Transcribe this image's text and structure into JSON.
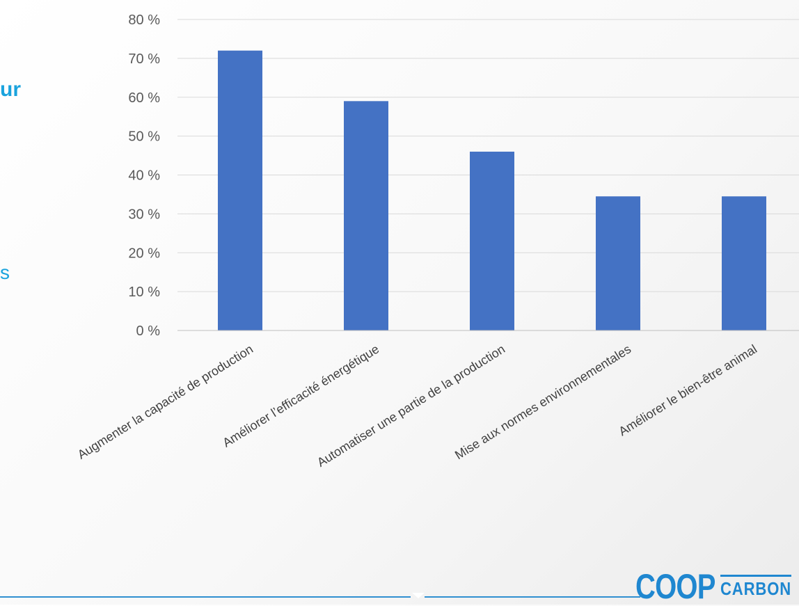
{
  "page": {
    "partial_text_1": "ur",
    "partial_text_2": "s"
  },
  "logo": {
    "part1": "COOP",
    "part2": "CARBON",
    "color": "#1f87d0"
  },
  "chart_data": {
    "type": "bar",
    "categories": [
      "Augmenter la capacité de production",
      "Améliorer l’efficacité énergétique",
      "Automatiser une partie de la production",
      "Mise aux normes environnementales",
      "Améliorer le bien-être animal"
    ],
    "values": [
      72,
      59,
      46,
      34.5,
      34.5
    ],
    "ylim": [
      0,
      80
    ],
    "yticks": [
      0,
      10,
      20,
      30,
      40,
      50,
      60,
      70,
      80
    ],
    "ytick_labels": [
      "0 %",
      "10 %",
      "20 %",
      "30 %",
      "40 %",
      "50 %",
      "60 %",
      "70 %",
      "80 %"
    ],
    "bar_color": "#4472c4",
    "grid": true,
    "legend": false
  }
}
